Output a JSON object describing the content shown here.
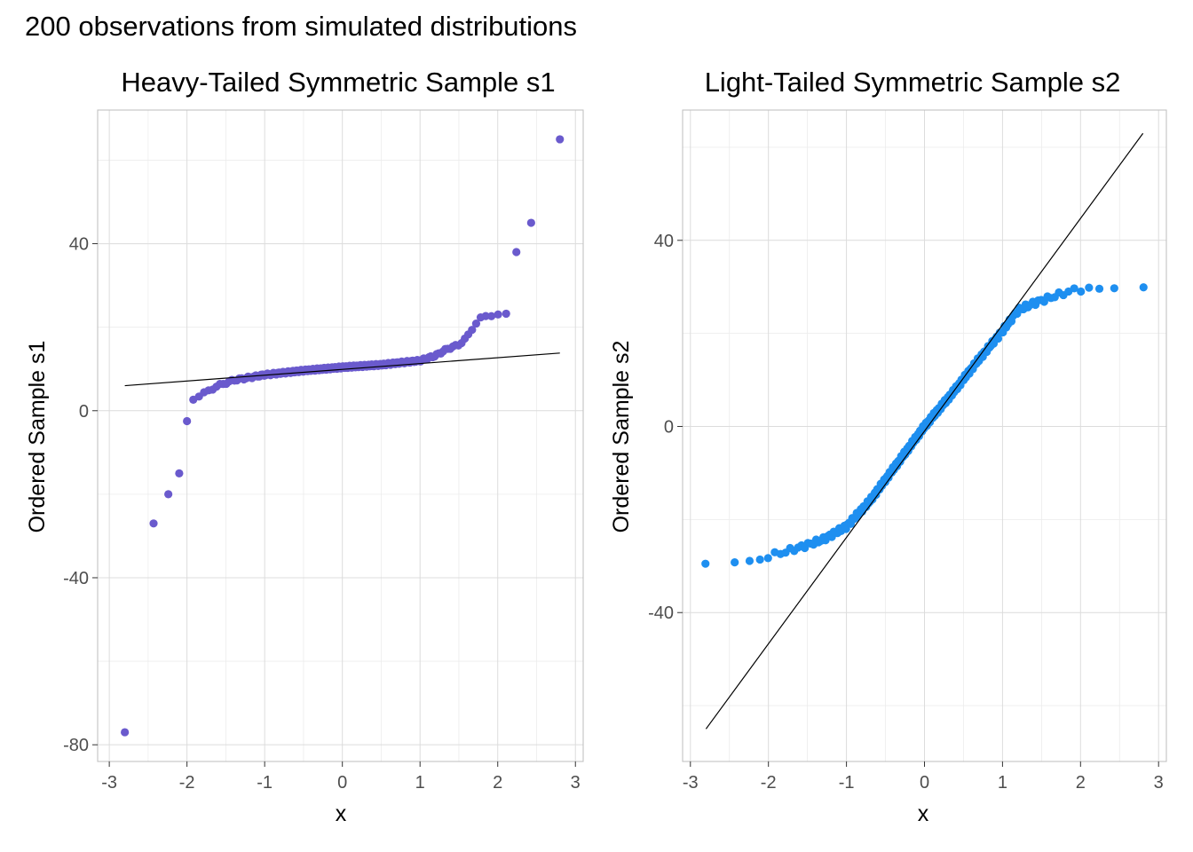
{
  "title": "200 observations from simulated distributions",
  "chart_data": [
    {
      "type": "scatter",
      "title": "Heavy-Tailed Symmetric Sample s1",
      "xlabel": "x",
      "ylabel": "Ordered Sample s1",
      "xlim": [
        -3.15,
        3.1
      ],
      "ylim": [
        -84,
        72
      ],
      "x_ticks": [
        -3,
        -2,
        -1,
        0,
        1,
        2,
        3
      ],
      "y_ticks": [
        -80,
        -40,
        0,
        40
      ],
      "y_tick_labels": [
        "-80",
        "-40",
        "0",
        "40"
      ],
      "grid": true,
      "point_color": "#6a5acd",
      "reference_line": [
        [
          -2.8,
          6.0
        ],
        [
          2.8,
          13.8
        ]
      ],
      "distribution": "heavy",
      "points": [
        [
          -2.8,
          -77
        ],
        [
          -2.43,
          -27
        ],
        [
          -2.24,
          -20
        ],
        [
          -2.1,
          -15
        ],
        [
          -2.0,
          -2.5
        ],
        [
          2.24,
          38
        ],
        [
          2.43,
          45
        ],
        [
          2.8,
          65
        ]
      ]
    },
    {
      "type": "scatter",
      "title": "Light-Tailed Symmetric Sample s2",
      "xlabel": "x",
      "ylabel": "Ordered Sample s2",
      "xlim": [
        -3.1,
        3.1
      ],
      "ylim": [
        -72,
        68
      ],
      "x_ticks": [
        -3,
        -2,
        -1,
        0,
        1,
        2,
        3
      ],
      "y_ticks": [
        -40,
        0,
        40
      ],
      "y_tick_labels": [
        "-40",
        "0",
        "40"
      ],
      "grid": true,
      "point_color": "#1e8ff0",
      "reference_line": [
        [
          -2.8,
          -65
        ],
        [
          2.8,
          63
        ]
      ],
      "distribution": "light",
      "points": []
    }
  ]
}
